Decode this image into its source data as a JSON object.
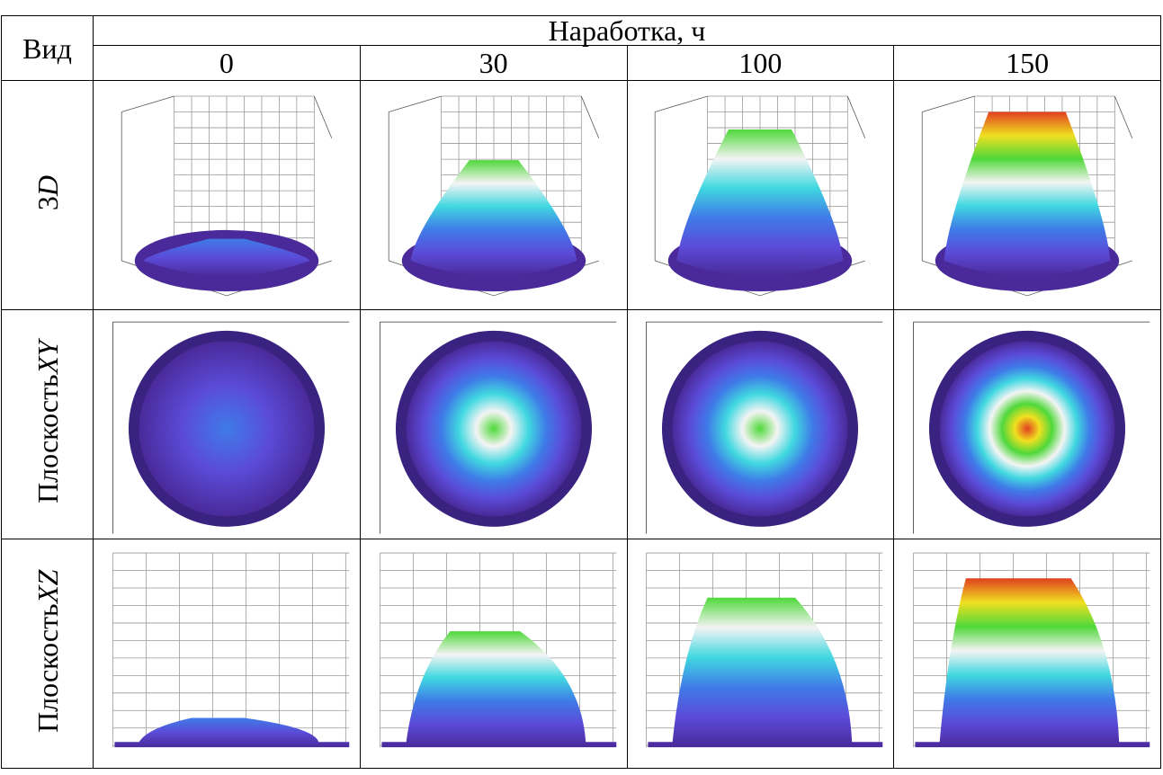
{
  "table": {
    "header": {
      "view": "Вид",
      "time": "Наработка, ч",
      "hours": [
        0,
        30,
        100,
        150
      ]
    },
    "rows": [
      {
        "text": "3",
        "italic": "D"
      },
      {
        "text": "Плоскость",
        "italic": "XY"
      },
      {
        "text": "Плоскость",
        "italic": "XZ"
      }
    ]
  }
}
